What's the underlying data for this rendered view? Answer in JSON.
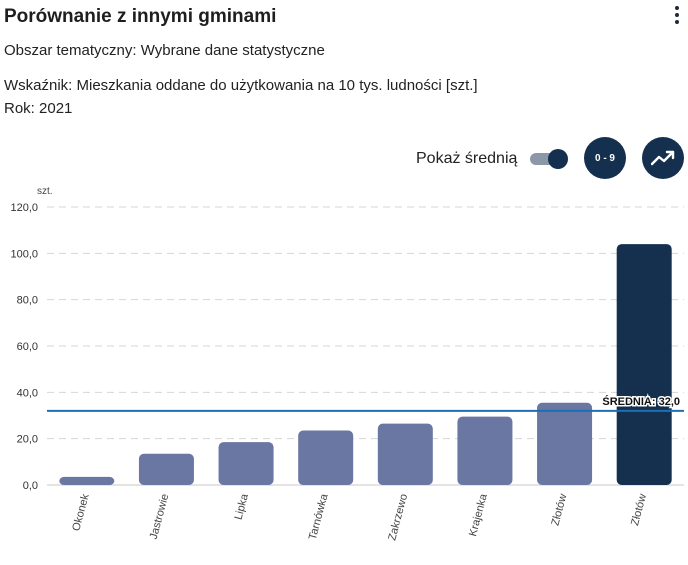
{
  "header": {
    "title": "Porównanie z innymi gminami",
    "menu_icon": "kebab-vertical-icon"
  },
  "info": {
    "area": "Obszar tematyczny: Wybrane dane statystyczne",
    "indicator": "Wskaźnik: Mieszkania oddane do użytkowania na 10 tys. ludności [szt.]",
    "year": "Rok: 2021"
  },
  "toolbar": {
    "show_average_label": "Pokaż średnią",
    "show_average_on": true,
    "range_button_label": "0 - 9",
    "trend_icon": "trend-chart-icon"
  },
  "colors": {
    "bar": "#6977a2",
    "bar_highlight": "#15304f",
    "average_line": "#1a6fb5",
    "grid": "#d6d6d6"
  },
  "chart_data": {
    "type": "bar",
    "ylabel": "szt.",
    "ylim": [
      0,
      120
    ],
    "yticks": [
      "0,0",
      "20,0",
      "40,0",
      "60,0",
      "80,0",
      "100,0",
      "120,0"
    ],
    "categories": [
      "Okonek",
      "Jastrowie",
      "Lipka",
      "Tarnówka",
      "Zakrzewo",
      "Krajenka",
      "Złotów",
      "Złotów"
    ],
    "values": [
      3.5,
      13.5,
      18.5,
      23.5,
      26.5,
      29.5,
      35.5,
      104.0
    ],
    "highlight_index": 7,
    "average_value": 32.0,
    "average_label": "ŚREDNIA: 32,0",
    "grid": true
  }
}
